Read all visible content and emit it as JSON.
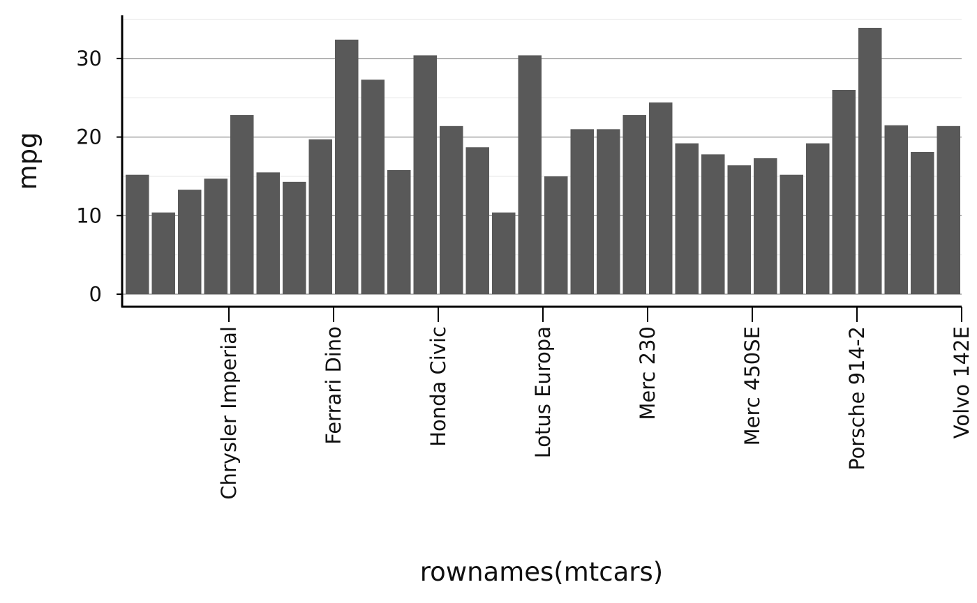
{
  "chart_data": {
    "type": "bar",
    "xlabel": "rownames(mtcars)",
    "ylabel": "mpg",
    "ylim": [
      0,
      35
    ],
    "y_ticks": [
      0,
      10,
      20,
      30
    ],
    "x_ticks": [
      {
        "category_index": 3.5,
        "label": "Chrysler Imperial"
      },
      {
        "category_index": 7.5,
        "label": "Ferrari Dino"
      },
      {
        "category_index": 11.5,
        "label": "Honda Civic"
      },
      {
        "category_index": 15.5,
        "label": "Lotus Europa"
      },
      {
        "category_index": 19.5,
        "label": "Merc 230"
      },
      {
        "category_index": 23.5,
        "label": "Merc 450SE"
      },
      {
        "category_index": 27.5,
        "label": "Porsche 914-2"
      },
      {
        "category_index": 31.5,
        "label": "Volvo 142E"
      }
    ],
    "values": [
      15.2,
      10.4,
      13.3,
      14.7,
      22.8,
      15.5,
      14.3,
      19.7,
      32.4,
      27.3,
      15.8,
      30.4,
      21.4,
      18.7,
      10.4,
      30.4,
      15.0,
      21.0,
      21.0,
      22.8,
      24.4,
      19.2,
      17.8,
      16.4,
      17.3,
      15.2,
      19.2,
      26.0,
      33.9,
      21.5,
      18.1,
      21.4
    ],
    "grid": true,
    "bar_color": "#595959"
  }
}
